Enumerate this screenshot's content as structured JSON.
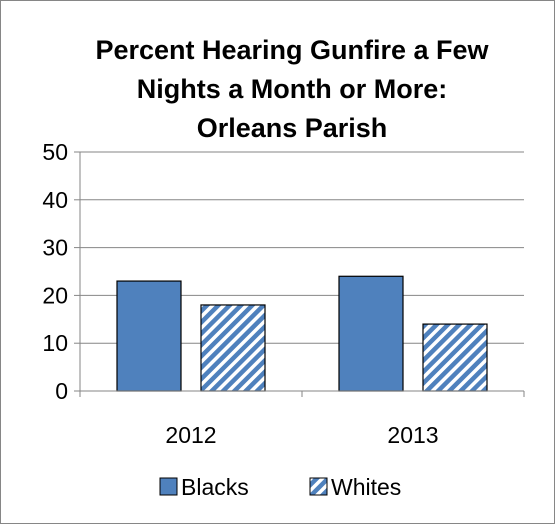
{
  "chart_data": {
    "type": "bar",
    "title_lines": [
      "Percent Hearing Gunfire a Few",
      "Nights a Month or More:",
      "Orleans Parish"
    ],
    "categories": [
      "2012",
      "2013"
    ],
    "series": [
      {
        "name": "Blacks",
        "values": [
          23,
          24
        ],
        "color": "#4f81bd",
        "pattern": "solid"
      },
      {
        "name": "Whites",
        "values": [
          18,
          14
        ],
        "color": "#4f81bd",
        "pattern": "diagonal-hatch"
      }
    ],
    "ylim": [
      0,
      50
    ],
    "yticks": [
      0,
      10,
      20,
      30,
      40,
      50
    ],
    "grid": true,
    "legend": "bottom",
    "xlabel": "",
    "ylabel": ""
  }
}
